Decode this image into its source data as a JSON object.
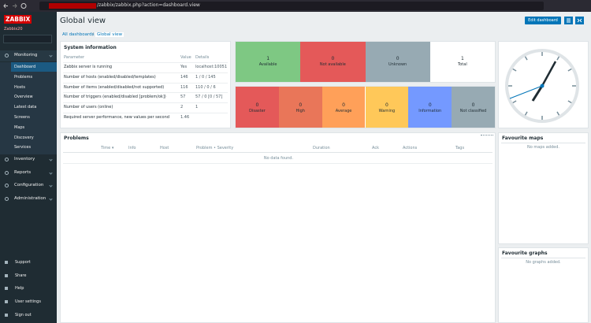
{
  "browser": {
    "url": "/zabbix/zabbix.php?action=dashboard.view"
  },
  "sidebar": {
    "logo": "ZABBIX",
    "server": "Zabbix20",
    "menu": [
      {
        "label": "Monitoring",
        "items": [
          "Dashboard",
          "Problems",
          "Hosts",
          "Overview",
          "Latest data",
          "Screens",
          "Maps",
          "Discovery",
          "Services"
        ]
      },
      {
        "label": "Inventory"
      },
      {
        "label": "Reports"
      },
      {
        "label": "Configuration"
      },
      {
        "label": "Administration"
      }
    ],
    "footer": [
      "Support",
      "Share",
      "Help",
      "User settings",
      "Sign out"
    ]
  },
  "header": {
    "title": "Global view",
    "edit_button": "Edit dashboard",
    "breadcrumb": {
      "items": [
        "All dashboards",
        "Global view"
      ],
      "separator": "/"
    }
  },
  "system_information": {
    "title": "System information",
    "columns": [
      "Parameter",
      "Value",
      "Details"
    ],
    "rows": [
      [
        "Zabbix server is running",
        "Yes",
        "localhost:10051"
      ],
      [
        "Number of hosts (enabled/disabled/templates)",
        "146",
        "1 / 0 / 145"
      ],
      [
        "Number of items (enabled/disabled/not supported)",
        "116",
        "110 / 0 / 6"
      ],
      [
        "Number of triggers (enabled/disabled [problem/ok])",
        "57",
        "57 / 0 [0 / 57]"
      ],
      [
        "Number of users (online)",
        "2",
        "1"
      ],
      [
        "Required server performance, new values per second",
        "1.46",
        ""
      ]
    ]
  },
  "host_availability": [
    {
      "value": "1",
      "label": "Available",
      "color": "#7ec883"
    },
    {
      "value": "0",
      "label": "Not available",
      "color": "#e45959"
    },
    {
      "value": "0",
      "label": "Unknown",
      "color": "#97aab3"
    },
    {
      "value": "1",
      "label": "Total",
      "color": "#ffffff"
    }
  ],
  "problems_by_severity": [
    {
      "value": "0",
      "label": "Disaster",
      "color": "#e45959"
    },
    {
      "value": "0",
      "label": "High",
      "color": "#e97659"
    },
    {
      "value": "0",
      "label": "Average",
      "color": "#ffa059"
    },
    {
      "value": "0",
      "label": "Warning",
      "color": "#ffc859"
    },
    {
      "value": "0",
      "label": "Information",
      "color": "#7499ff"
    },
    {
      "value": "0",
      "label": "Not classified",
      "color": "#97aab3"
    }
  ],
  "problems": {
    "title": "Problems",
    "columns": [
      "Time ▾",
      "Info",
      "Host",
      "Problem • Severity",
      "Duration",
      "Ack",
      "Actions",
      "Tags"
    ],
    "empty": "No data found."
  },
  "favourite_maps": {
    "title": "Favourite maps",
    "empty": "No maps added."
  },
  "favourite_graphs": {
    "title": "Favourite graphs",
    "empty": "No graphs added."
  }
}
